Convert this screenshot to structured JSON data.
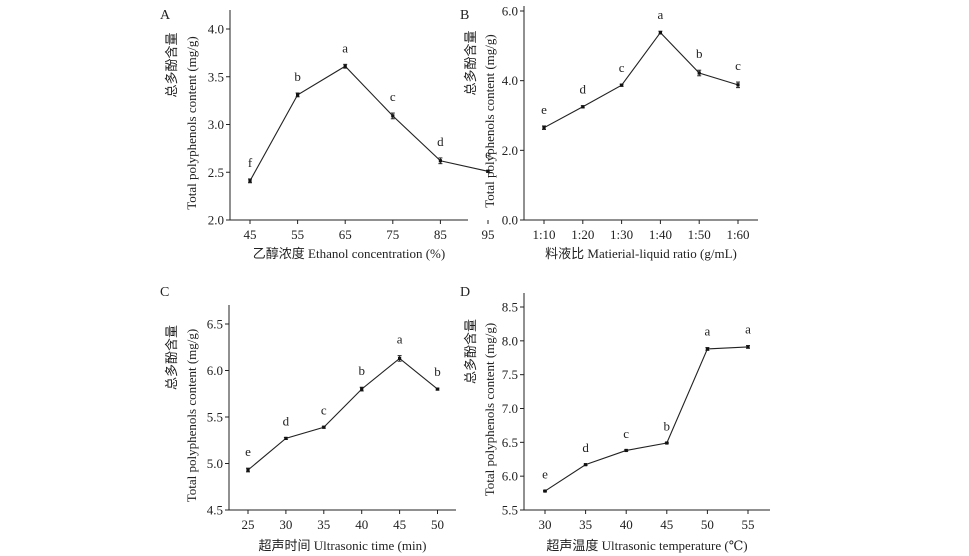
{
  "chart_data": [
    {
      "panel": "A",
      "type": "line",
      "title": "",
      "xlabel": "乙醇浓度 Ethanol concentration (%)",
      "ylabel_en": "Total polyphenols content (mg/g)",
      "ylabel_zh": "总多酚含量",
      "categories": [
        "45",
        "55",
        "65",
        "75",
        "85",
        "95"
      ],
      "values": [
        2.41,
        3.31,
        3.61,
        3.09,
        2.62,
        2.51
      ],
      "errors": [
        0.02,
        0.02,
        0.02,
        0.03,
        0.03,
        0.01
      ],
      "significance": [
        "f",
        "b",
        "a",
        "c",
        "d",
        "e"
      ],
      "ylim": [
        2.0,
        4.2
      ],
      "yticks": [
        "2.0",
        "2.5",
        "3.0",
        "3.5",
        "4.0"
      ],
      "grid": false
    },
    {
      "panel": "B",
      "type": "line",
      "title": "",
      "xlabel": "料液比 Matierial-liquid ratio (g/mL)",
      "ylabel_en": "Total polyphenols content (mg/g)",
      "ylabel_zh": "总多酚含量",
      "categories": [
        "1:10",
        "1:20",
        "1:30",
        "1:40",
        "1:50",
        "1:60"
      ],
      "values": [
        2.65,
        3.25,
        3.87,
        5.38,
        4.22,
        3.88
      ],
      "errors": [
        0.05,
        0.03,
        0.03,
        0.04,
        0.08,
        0.08
      ],
      "significance": [
        "e",
        "d",
        "c",
        "a",
        "b",
        "c"
      ],
      "ylim": [
        0.0,
        6.1
      ],
      "yticks": [
        "0.0",
        "2.0",
        "4.0",
        "6.0"
      ],
      "grid": false
    },
    {
      "panel": "C",
      "type": "line",
      "title": "",
      "xlabel": "超声时间 Ultrasonic time (min)",
      "ylabel_en": "Total polyphenols content (mg/g)",
      "ylabel_zh": "总多酚含量",
      "categories": [
        "25",
        "30",
        "35",
        "40",
        "45",
        "50"
      ],
      "values": [
        4.93,
        5.27,
        5.39,
        5.8,
        6.13,
        5.8
      ],
      "errors": [
        0.02,
        0.01,
        0.01,
        0.02,
        0.03,
        0.01
      ],
      "significance": [
        "e",
        "d",
        "c",
        "b",
        "a",
        "b"
      ],
      "ylim": [
        4.5,
        6.7
      ],
      "yticks": [
        "4.5",
        "5.0",
        "5.5",
        "6.0",
        "6.5"
      ],
      "grid": false
    },
    {
      "panel": "D",
      "type": "line",
      "title": "",
      "xlabel": "超声温度 Ultrasonic temperature (℃)",
      "ylabel_en": "Total polyphenols content (mg/g)",
      "ylabel_zh": "总多酚含量",
      "categories": [
        "30",
        "35",
        "40",
        "45",
        "50",
        "55"
      ],
      "values": [
        5.78,
        6.17,
        6.38,
        6.49,
        7.88,
        7.91
      ],
      "errors": [
        0.01,
        0.01,
        0.01,
        0.01,
        0.02,
        0.02
      ],
      "significance": [
        "e",
        "d",
        "c",
        "b",
        "a",
        "a"
      ],
      "ylim": [
        5.5,
        8.7
      ],
      "yticks": [
        "5.5",
        "6.0",
        "6.5",
        "7.0",
        "7.5",
        "8.0",
        "8.5"
      ],
      "grid": false
    }
  ]
}
